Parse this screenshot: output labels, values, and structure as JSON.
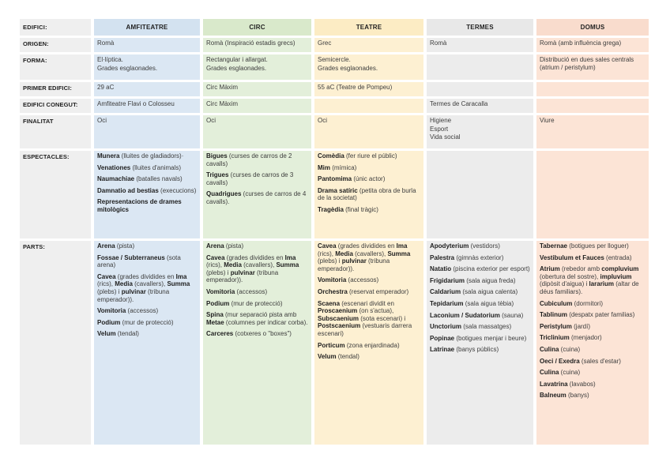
{
  "document": {
    "background": "#ffffff"
  },
  "table": {
    "corner_label": "EDIFICI:",
    "label_column_color": "#efefef",
    "columns": [
      {
        "id": "amfiteatre",
        "header": "AMFITEATRE",
        "header_color": "#d3e2f0",
        "cell_color": "#dbe7f3"
      },
      {
        "id": "circ",
        "header": "CIRC",
        "header_color": "#d9e9cb",
        "cell_color": "#e3efda"
      },
      {
        "id": "teatre",
        "header": "TEATRE",
        "header_color": "#fcecc4",
        "cell_color": "#fdf0d2"
      },
      {
        "id": "termes",
        "header": "TERMES",
        "header_color": "#e8e8e8",
        "cell_color": "#ececec"
      },
      {
        "id": "domus",
        "header": "DOMUS",
        "header_color": "#f9dccd",
        "cell_color": "#fce4d6"
      }
    ],
    "rows": [
      {
        "label": "ORIGEN:",
        "spaced": false,
        "cells": [
          [
            "Romà"
          ],
          [
            "Romà (Inspiració estadis grecs)"
          ],
          [
            "Grec"
          ],
          [
            "Romà"
          ],
          [
            "Romà (amb influència grega)"
          ]
        ]
      },
      {
        "label": "FORMA:",
        "spaced": false,
        "cells": [
          [
            "El·líptica.",
            "Grades esglaonades."
          ],
          [
            "Rectangular i allargat.",
            "Grades esglaonades."
          ],
          [
            "Semicercle.",
            "Grades esglaonades."
          ],
          [],
          [
            "Distribució en dues sales centrals (atrium / peristylum)"
          ]
        ]
      },
      {
        "label": "PRIMER EDIFICI:",
        "spaced": false,
        "cells": [
          [
            "29 aC"
          ],
          [
            "Circ Màxim"
          ],
          [
            "55 aC (Teatre de Pompeu)"
          ],
          [],
          []
        ]
      },
      {
        "label": "EDIFICI CONEGUT:",
        "spaced": false,
        "cells": [
          [
            "Amfiteatre Flavi o Colosseu"
          ],
          [
            "Circ Màxim"
          ],
          [],
          [
            "Termes de Caracalla"
          ],
          []
        ]
      },
      {
        "label": "FINALITAT",
        "spaced": false,
        "cells": [
          [
            "Oci"
          ],
          [
            "Oci"
          ],
          [
            "Oci"
          ],
          [
            "Higiene",
            "Esport",
            "Vida social"
          ],
          [
            "Viure"
          ]
        ]
      },
      {
        "label": "ESPECTACLES:",
        "spaced": true,
        "cells": [
          [
            "**Munera** (lluites de gladiadors)·",
            "**Venationes** (lluites d'animals)",
            "**Naumachiae** (batalles navals)",
            "**Damnatio ad bestias** (execucions)",
            "**Representacions de drames mitològics**"
          ],
          [
            "**Bigues** (curses de carros de 2 cavalls)",
            "**Trigues** (curses de carros de 3 cavalls)",
            "**Quadrigues** (curses de carros de 4 cavalls)."
          ],
          [
            "**Comèdia** (fer riure el públic)",
            "**Mim** (mímica)",
            "**Pantomima** (únic actor)",
            "**Drama satíric** (petita obra de burla de la societat)",
            "**Tragèdia** (final tràgic)"
          ],
          [],
          []
        ]
      },
      {
        "label": "PARTS:",
        "spaced": true,
        "cells": [
          [
            "**Arena** (pista)",
            "**Fossae / Subterraneus** (sota arena)",
            "**Cavea** (grades dividides en **Ima** (rics), **Media** (cavallers), **Summa** (plebs) i **pulvinar** (tribuna emperador)).",
            "**Vomitoria** (accessos)",
            "**Podium** (mur de protecció)",
            "**Velum** (tendal)"
          ],
          [
            "**Arena** (pista)",
            "**Cavea** (grades dividides en **Ima** (rics), **Media** (cavallers), **Summa** (plebs) i **pulvinar** (tribuna emperador)).",
            "**Vomitoria** (accessos)",
            "**Podium** (mur de protecció)",
            "**Spina** (mur separació pista amb **Metae** (columnes per indicar corba).",
            "**Carceres** (cotxeres o \"boxes\")"
          ],
          [
            "**Cavea** (grades dividides en **Ima** (rics), **Media** (cavallers), **Summa** (plebs) i **pulvinar** (tribuna emperador)).",
            "**Vomitoria** (accessos)",
            "**Orchestra** (reservat emperador)",
            "**Scaena** (escenari dividit en **Proscaenium** (on s'actua), **Subscaenium** (sota escenari) i **Postscaenium** (vestuaris darrera escenari)",
            "**Porticum** (zona enjardinada)",
            "**Velum** (tendal)"
          ],
          [
            "**Apodyterium** (vestidors)",
            "**Palestra** (gimnàs exterior)",
            "**Natatio** (piscina exterior per esport)",
            "**Frigidarium** (sala aigua freda)",
            "**Caldarium** (sala aigua calenta)",
            "**Tepidarium** (sala aigua tèbia)",
            "**Laconium / Sudatorium** (sauna)",
            "**Unctorium** (sala massatges)",
            "**Popinae** (botigues menjar i beure)",
            "**Latrinae** (banys públics)"
          ],
          [
            "**Tabernae** (botigues per lloguer)",
            "**Vestibulum et Fauces** (entrada)",
            "**Atrium** (rebedor amb **compluvium** (obertura del sostre), **impluvium** (dipòsit d'aigua) i **lararium** (altar de déus familiars).",
            "**Cubiculum** (dormitori)",
            "**Tablinum** (despatx pater familias)",
            "**Peristylum** (jardí)",
            "**Triclinium** (menjador)",
            "**Culina** (cuina)",
            "**Oeci / Exedra** (sales d'estar)",
            "**Culina** (cuina)",
            "**Lavatrina** (lavabos)",
            "**Balneum** (banys)"
          ]
        ]
      }
    ]
  }
}
